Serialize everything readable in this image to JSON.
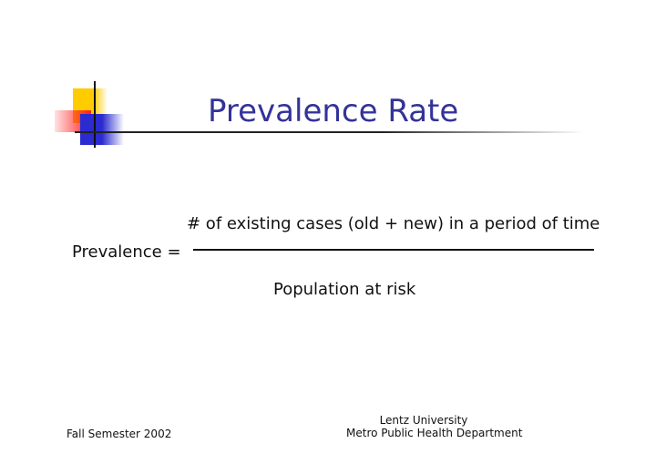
{
  "title": "Prevalence Rate",
  "formula": {
    "lhs": "Prevalence =",
    "numerator": "# of existing cases (old + new) in a period of time",
    "denominator": "Population at risk"
  },
  "footer": {
    "left": "Fall Semester 2002",
    "center_line1": "Lentz University",
    "center_line2": "Metro Public Health Department"
  }
}
